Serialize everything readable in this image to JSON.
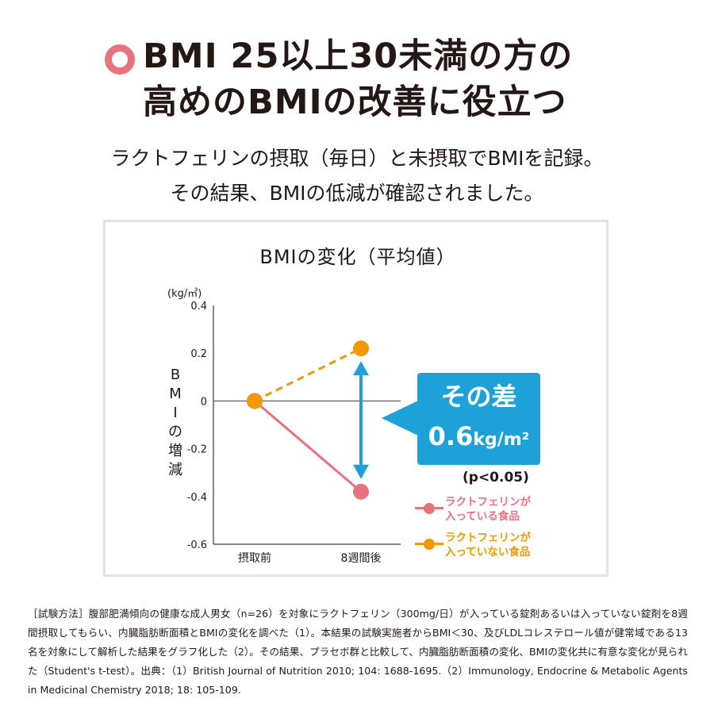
{
  "headline": {
    "line1": "BMI 25以上30未満の方の",
    "line2": "高めのBMIの改善に役立つ"
  },
  "subtitle": {
    "line1": "ラクトフェリンの摂取（毎日）と未摂取でBMIを記録。",
    "line2": "その結果、BMIの低減が確認されました。"
  },
  "chart_data": {
    "type": "line",
    "title": "BMIの変化（平均値）",
    "ylabel": "BMIの増減",
    "yunit": "(kg/㎡)",
    "categories": [
      "摂取前",
      "8週間後"
    ],
    "ylim": [
      -0.6,
      0.4
    ],
    "yticks": [
      "0.4",
      "0.2",
      "0",
      "-0.2",
      "-0.4",
      "-0.6"
    ],
    "series": [
      {
        "name": "ラクトフェリンが入っている食品",
        "values": [
          0,
          -0.38
        ],
        "color": "#e8727e",
        "style": "solid"
      },
      {
        "name": "ラクトフェリンが入っていない食品",
        "values": [
          0,
          0.22
        ],
        "color": "#f39800",
        "style": "dashed"
      }
    ],
    "legend_position": "bottom-right",
    "grid": false
  },
  "difference": {
    "label": "その差",
    "value": "0.6",
    "unit": "kg/m²",
    "p_value": "(p<0.05)",
    "color": "#1ea1d8"
  },
  "legend": [
    {
      "line1": "ラクトフェリンが",
      "line2": "入っている食品",
      "color": "#e8727e"
    },
    {
      "line1": "ラクトフェリンが",
      "line2": "入っていない食品",
      "color": "#f39800"
    }
  ],
  "footnote": "［試験方法］腹部肥満傾向の健康な成人男女（n=26）を対象にラクトフェリン（300mg/日）が入っている錠剤あるいは入っていない錠剤を8週間摂取してもらい、内臓脂肪断面積とBMIの変化を調べた（1）。本結果の試験実施者からBMI＜30、及びLDLコレステロール値が健常域である13名を対象にして解析した結果をグラフ化した（2）。その結果、プラセボ群と比較して、内臓脂肪断面積の変化、BMIの変化共に有意な変化が見られた（Student's t-test）。出典：（1）British Journal of Nutrition 2010; 104: 1688-1695.（2）Immunology, Endocrine & Metabolic Agents in Medicinal Chemistry 2018; 18: 105-109.",
  "colors": {
    "accent_pink": "#e8727e",
    "accent_orange": "#f39800",
    "accent_blue": "#1ea1d8"
  }
}
